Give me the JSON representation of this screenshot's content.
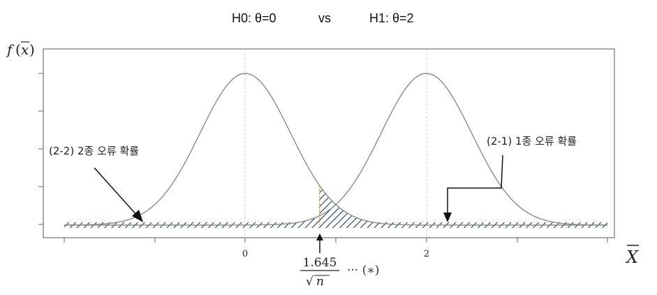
{
  "header": {
    "h0": "H0: θ=0",
    "vs": "vs",
    "h1": "H1: θ=2"
  },
  "axes": {
    "y_label_f": "f",
    "y_label_paren_open": "(",
    "y_label_x": "x",
    "y_label_paren_close": ")",
    "x_label": "X",
    "x_ticks": [
      "0",
      "2"
    ]
  },
  "annotations": {
    "type2_error": "(2-2) 2종 오류 확률",
    "type1_error": "(2-1) 1종 오류 확률",
    "critical_numerator": "1.645",
    "critical_denominator_sqrt": "√",
    "critical_denominator_n": "n",
    "critical_suffix": "··· (∗)"
  },
  "chart_data": {
    "type": "area",
    "xlim": [
      -2,
      4
    ],
    "series": [
      {
        "name": "H0",
        "mean": 0,
        "sd": 0.5
      },
      {
        "name": "H1",
        "mean": 2,
        "sd": 0.5
      }
    ],
    "critical_value": 0.82,
    "shaded_regions": [
      {
        "label": "type2",
        "from": -2,
        "to": 0.82,
        "under": "H1"
      },
      {
        "label": "type1",
        "from": 0.82,
        "to": 4,
        "under": "H0"
      }
    ],
    "colors": {
      "curve": "#8a8a8a",
      "hatch": "#1f3a5a",
      "critical_line": "#e0a13a",
      "grid": "#c8c8c8"
    }
  }
}
